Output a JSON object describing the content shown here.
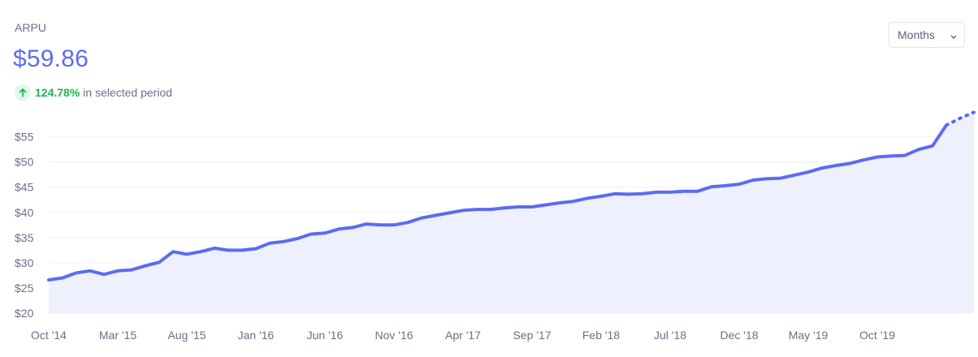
{
  "metric": {
    "label": "ARPU",
    "value": "$59.86",
    "change_pct": "124.78%",
    "change_text": "in selected period",
    "change_direction": "up"
  },
  "controls": {
    "period_select": "Months"
  },
  "colors": {
    "accent": "#5b6cf2",
    "fill": "#eef0fd",
    "positive": "#21b34f"
  },
  "chart_data": {
    "type": "area",
    "title": "",
    "xlabel": "",
    "ylabel": "",
    "ylim": [
      20,
      58
    ],
    "y_ticks": [
      "$20",
      "$25",
      "$30",
      "$35",
      "$40",
      "$45",
      "$50",
      "$55"
    ],
    "x_ticks": [
      "Oct '14",
      "Mar '15",
      "Aug '15",
      "Jan '16",
      "Jun '16",
      "Nov '16",
      "Apr '17",
      "Sep '17",
      "Feb '18",
      "Jul '18",
      "Dec '18",
      "May '19",
      "Oct '19"
    ],
    "grid": true,
    "series": [
      {
        "start_month": "Oct '14",
        "values": [
          26.6,
          27.0,
          28.0,
          28.4,
          27.7,
          28.4,
          28.6,
          29.4,
          30.1,
          32.2,
          31.7,
          32.2,
          32.9,
          32.5,
          32.5,
          32.8,
          33.9,
          34.2,
          34.8,
          35.7,
          35.9,
          36.7,
          37.0,
          37.7,
          37.5,
          37.5,
          38.0,
          38.9,
          39.4,
          39.9,
          40.4,
          40.6,
          40.6,
          40.9,
          41.1,
          41.1,
          41.5,
          41.9,
          42.2,
          42.8,
          43.2,
          43.7,
          43.6,
          43.7,
          44.0,
          44.0,
          44.2,
          44.2,
          45.1,
          45.3,
          45.6,
          46.4,
          46.7,
          46.8,
          47.4,
          48.0,
          48.8,
          49.3,
          49.7,
          50.4,
          51.0,
          51.2,
          51.3,
          52.5,
          53.2,
          57.3
        ],
        "projected": [
          57.3,
          58.7,
          59.86
        ]
      }
    ]
  }
}
